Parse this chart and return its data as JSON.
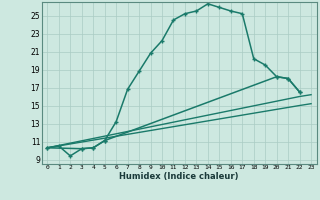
{
  "xlabel": "Humidex (Indice chaleur)",
  "background_color": "#cde8e0",
  "grid_color": "#aaccc4",
  "line_color": "#1a7a6a",
  "xlim": [
    -0.5,
    23.5
  ],
  "ylim": [
    8.5,
    26.5
  ],
  "xticks": [
    0,
    1,
    2,
    3,
    4,
    5,
    6,
    7,
    8,
    9,
    10,
    11,
    12,
    13,
    14,
    15,
    16,
    17,
    18,
    19,
    20,
    21,
    22,
    23
  ],
  "yticks": [
    9,
    11,
    13,
    15,
    17,
    19,
    21,
    23,
    25
  ],
  "series1_x": [
    0,
    1,
    2,
    3,
    4,
    5,
    6,
    7,
    8,
    9,
    10,
    11,
    12,
    13,
    14,
    15,
    16,
    17,
    18,
    19,
    20,
    21,
    22
  ],
  "series1_y": [
    10.3,
    10.5,
    9.4,
    10.2,
    10.3,
    11.1,
    13.2,
    16.8,
    18.8,
    20.8,
    22.2,
    24.5,
    25.2,
    25.5,
    26.3,
    25.9,
    25.5,
    25.2,
    20.2,
    19.5,
    18.2,
    18.0,
    16.5
  ],
  "series2_x": [
    0,
    3,
    4,
    5,
    20,
    21,
    22
  ],
  "series2_y": [
    10.3,
    10.2,
    10.3,
    11.1,
    18.2,
    18.0,
    16.5
  ],
  "series3_x": [
    0,
    22,
    23
  ],
  "series3_y": [
    10.3,
    16.0,
    16.2
  ],
  "series4_x": [
    0,
    22,
    23
  ],
  "series4_y": [
    10.3,
    15.0,
    15.2
  ]
}
